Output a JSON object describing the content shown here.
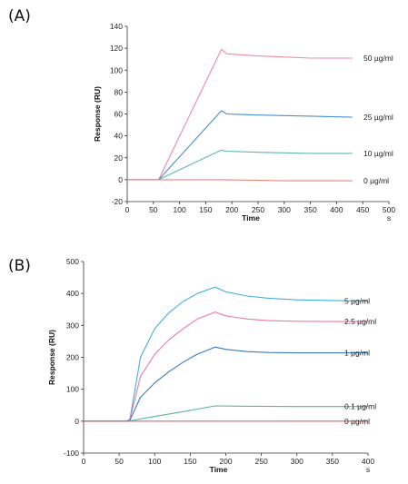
{
  "panels": {
    "a": {
      "label": "(A)"
    },
    "b": {
      "label": "(B)"
    }
  },
  "chart_data": [
    {
      "type": "line",
      "panel": "(A)",
      "title": "",
      "xlabel": "Time",
      "xunit": "s",
      "ylabel": "Response (RU)",
      "xlim": [
        0,
        500
      ],
      "ylim": [
        -20,
        140
      ],
      "xticks": [
        0,
        50,
        100,
        150,
        200,
        250,
        300,
        350,
        400,
        450,
        500
      ],
      "yticks": [
        -20,
        0,
        20,
        40,
        60,
        80,
        100,
        120,
        140
      ],
      "series": [
        {
          "name": "50 µg/ml",
          "color": "#f08aa0",
          "x": [
            0,
            60,
            62,
            180,
            190,
            250,
            350,
            430
          ],
          "y": [
            0,
            0,
            2,
            119,
            115,
            113,
            111,
            111
          ]
        },
        {
          "name": "25 µg/ml",
          "color": "#4a8fd0",
          "x": [
            0,
            60,
            62,
            180,
            190,
            250,
            350,
            430
          ],
          "y": [
            0,
            0,
            1,
            63,
            60,
            59,
            58,
            57
          ]
        },
        {
          "name": "10 µg/ml",
          "color": "#5fb8b0",
          "x": [
            0,
            60,
            62,
            180,
            190,
            250,
            350,
            430
          ],
          "y": [
            0,
            0,
            0.5,
            27,
            26,
            25,
            24,
            24
          ]
        },
        {
          "name": "0 µg/ml",
          "color": "#e08878",
          "x": [
            0,
            60,
            180,
            300,
            430
          ],
          "y": [
            0,
            0,
            0,
            -1,
            -1
          ]
        }
      ]
    },
    {
      "type": "line",
      "panel": "(B)",
      "title": "",
      "xlabel": "Time",
      "xunit": "s",
      "ylabel": "Response (RU)",
      "xlim": [
        0,
        400
      ],
      "ylim": [
        -100,
        500
      ],
      "xticks": [
        0,
        50,
        100,
        150,
        200,
        250,
        300,
        350,
        400
      ],
      "yticks": [
        -100,
        0,
        100,
        200,
        300,
        400,
        500
      ],
      "series": [
        {
          "name": "5 µg/ml",
          "color": "#40b0e0",
          "x": [
            0,
            60,
            65,
            80,
            100,
            120,
            140,
            160,
            185,
            200,
            230,
            260,
            300,
            350,
            400
          ],
          "y": [
            0,
            0,
            5,
            200,
            290,
            340,
            375,
            400,
            420,
            405,
            392,
            385,
            380,
            378,
            376
          ]
        },
        {
          "name": "2.5 µg/ml",
          "color": "#f07a98",
          "x": [
            0,
            60,
            65,
            80,
            100,
            120,
            140,
            160,
            185,
            200,
            230,
            260,
            300,
            350,
            400
          ],
          "y": [
            0,
            0,
            5,
            140,
            210,
            255,
            290,
            320,
            342,
            330,
            320,
            315,
            313,
            312,
            312
          ]
        },
        {
          "name": "1 µg/ml",
          "color": "#3a78c0",
          "x": [
            0,
            60,
            65,
            80,
            100,
            120,
            140,
            160,
            185,
            200,
            230,
            260,
            300,
            350,
            400
          ],
          "y": [
            0,
            0,
            3,
            75,
            120,
            155,
            185,
            210,
            232,
            225,
            218,
            215,
            214,
            214,
            214
          ]
        },
        {
          "name": "0.1 µg/ml",
          "color": "#58b898",
          "x": [
            0,
            60,
            65,
            100,
            140,
            185,
            220,
            300,
            400
          ],
          "y": [
            0,
            0,
            1,
            15,
            30,
            48,
            47,
            46,
            46
          ]
        },
        {
          "name": "0 µg/ml",
          "color": "#e06060",
          "x": [
            0,
            60,
            185,
            300,
            400
          ],
          "y": [
            0,
            0,
            0,
            0,
            0
          ]
        }
      ]
    }
  ]
}
